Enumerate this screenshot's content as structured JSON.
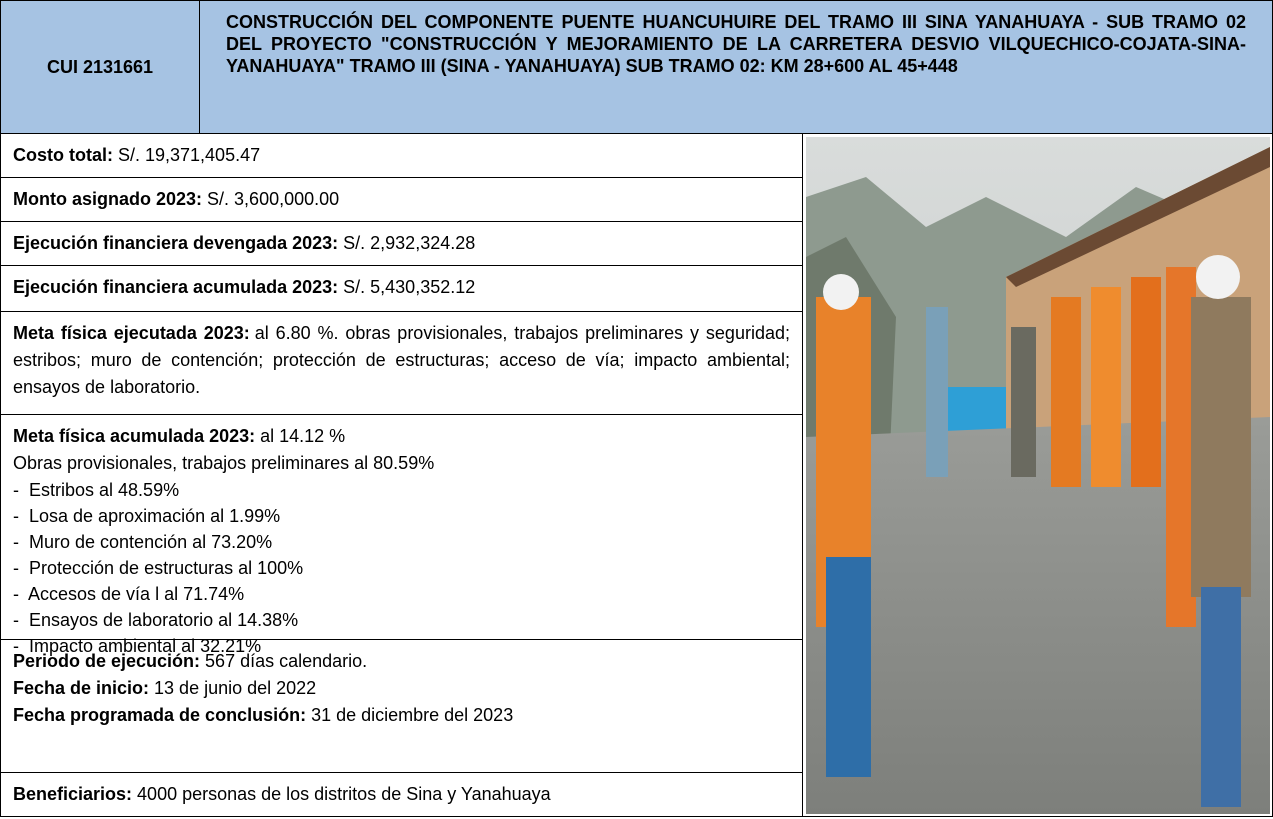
{
  "header": {
    "code": "CUI 2131661",
    "title": "CONSTRUCCIÓN DEL COMPONENTE PUENTE HUANCUHUIRE DEL TRAMO III SINA YANAHUAYA - SUB TRAMO 02 DEL PROYECTO \"CONSTRUCCIÓN Y MEJORAMIENTO DE LA CARRETERA DESVIO VILQUECHICO-COJATA-SINA-YANAHUAYA\" TRAMO III (SINA - YANAHUAYA) SUB TRAMO 02: KM 28+600 AL 45+448"
  },
  "rows": [
    {
      "lines": [
        {
          "label": "Costo total:",
          "text": "S/. 19,371,405.47"
        }
      ]
    },
    {
      "lines": [
        {
          "label": "Monto asignado 2023:",
          "text": "S/. 3,600,000.00"
        }
      ]
    },
    {
      "lines": [
        {
          "label": "Ejecución financiera devengada 2023:",
          "text": "S/. 2,932,324.28"
        }
      ]
    },
    {
      "lines": [
        {
          "label": "Ejecución financiera acumulada 2023:",
          "text": "S/. 5,430,352.12"
        }
      ]
    },
    {
      "lines": [
        {
          "label": "Meta física ejecutada 2023:",
          "text": "al 6.80 %. obras provisionales, trabajos preliminares y seguridad; estribos; muro de contención; protección de estructuras; acceso de vía; impacto ambiental; ensayos de laboratorio."
        }
      ]
    },
    {
      "lines": [
        {
          "label": "Meta física acumulada 2023:",
          "text": "al 14.12 %"
        },
        {
          "text": "Obras provisionales, trabajos preliminares al 80.59%"
        }
      ],
      "items": [
        "-  Estribos al 48.59%",
        "-  Losa de aproximación al 1.99%",
        "-  Muro de contención al 73.20%",
        "-  Protección de estructuras al 100%",
        "-  Accesos de vía l al 71.74%",
        "-  Ensayos de laboratorio al 14.38%",
        "-  Impacto ambiental al 32.21%"
      ]
    },
    {
      "lines": [
        {
          "label": "Periodo de ejecución:",
          "text": "567 días calendario."
        },
        {
          "label": "Fecha de inicio:",
          "text": "13 de junio del 2022"
        },
        {
          "label": "Fecha programada de conclusión:",
          "text": "31 de diciembre del 2023"
        }
      ]
    },
    {
      "lines": [
        {
          "label": "Beneficiarios:",
          "text": "4000 personas de los distritos de Sina y Yanahuaya"
        }
      ]
    }
  ]
}
